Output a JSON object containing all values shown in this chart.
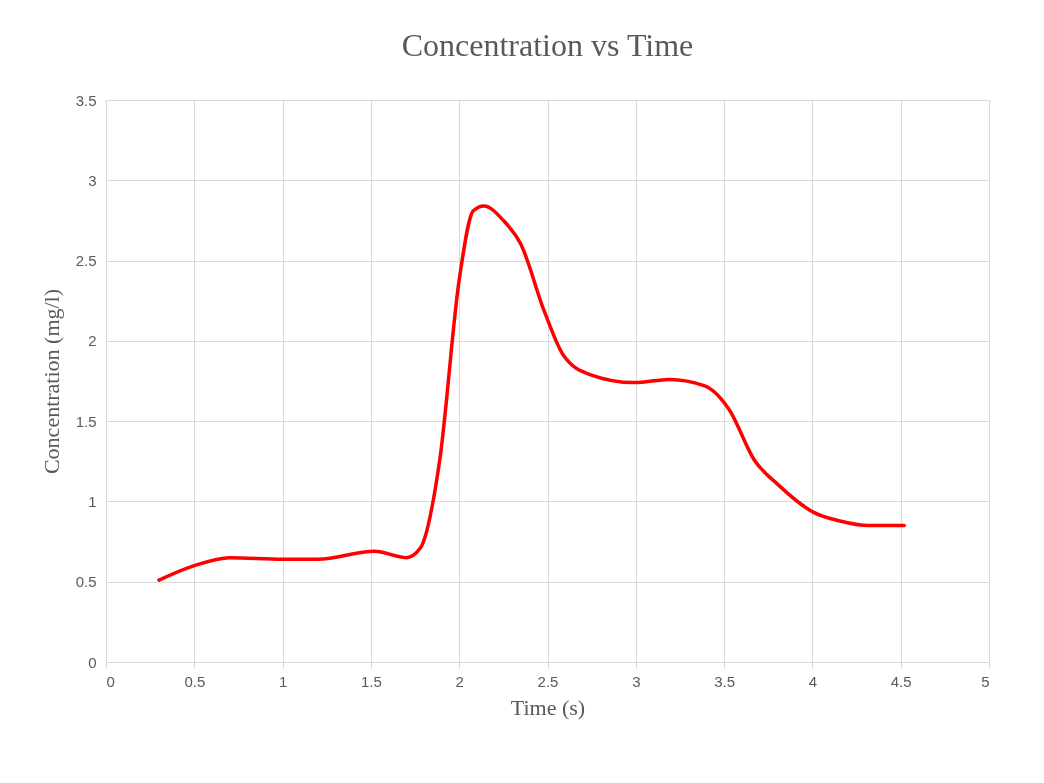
{
  "chart_data": {
    "type": "line",
    "title": "Concentration vs Time",
    "xlabel": "Time (s)",
    "ylabel": "Concentration (mg/l)",
    "xlim": [
      0,
      5
    ],
    "xticks": [
      0,
      0.5,
      1,
      1.5,
      2,
      2.5,
      3,
      3.5,
      4,
      4.5,
      5
    ],
    "ylim": [
      0,
      3.5
    ],
    "yticks": [
      0,
      0.5,
      1,
      1.5,
      2,
      2.5,
      3,
      3.5
    ],
    "grid": true,
    "marker": "none",
    "line_style": "solid",
    "series": [
      {
        "color": "#ff0000",
        "x": [
          0.3,
          0.5,
          0.7,
          1.0,
          1.2,
          1.52,
          1.7,
          1.78,
          1.89,
          2.0,
          2.08,
          2.14,
          2.25,
          2.35,
          2.48,
          2.59,
          2.74,
          2.99,
          3.19,
          3.39,
          3.53,
          3.67,
          3.81,
          4.01,
          4.15,
          4.32,
          4.52
        ],
        "values": [
          0.51,
          0.6,
          0.65,
          0.64,
          0.64,
          0.69,
          0.65,
          0.71,
          1.26,
          2.38,
          2.81,
          2.84,
          2.75,
          2.6,
          2.19,
          1.91,
          1.79,
          1.74,
          1.76,
          1.72,
          1.57,
          1.26,
          1.1,
          0.93,
          0.88,
          0.85,
          0.85
        ]
      }
    ]
  }
}
